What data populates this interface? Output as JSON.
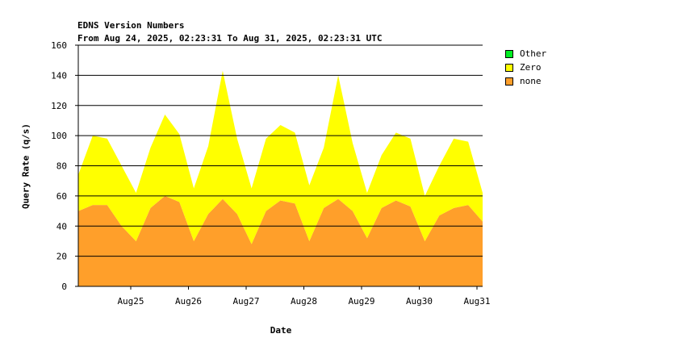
{
  "chart_data": {
    "type": "area",
    "title": "EDNS Version Numbers",
    "subtitle": "From Aug 24, 2025, 02:23:31 To Aug 31, 2025, 02:23:31 UTC",
    "xlabel": "Date",
    "ylabel": "Query Rate (q/s)",
    "ylim": [
      0,
      160
    ],
    "yticks": [
      0,
      20,
      40,
      60,
      80,
      100,
      120,
      140,
      160
    ],
    "xticks": [
      "Aug25",
      "Aug26",
      "Aug27",
      "Aug28",
      "Aug29",
      "Aug30",
      "Aug31"
    ],
    "stacked": true,
    "grid": true,
    "legend_position": "right",
    "legend": [
      "Other",
      "Zero",
      "none"
    ],
    "series_colors": {
      "Other": "#00ee22",
      "Zero": "#ffff00",
      "none": "#ff9f2a"
    },
    "x": [
      "Aug 24 02:00",
      "Aug 24 08:00",
      "Aug 24 14:00",
      "Aug 24 20:00",
      "Aug 25 02:00",
      "Aug 25 08:00",
      "Aug 25 14:00",
      "Aug 25 20:00",
      "Aug 26 02:00",
      "Aug 26 08:00",
      "Aug 26 14:00",
      "Aug 26 20:00",
      "Aug 27 02:00",
      "Aug 27 08:00",
      "Aug 27 14:00",
      "Aug 27 20:00",
      "Aug 28 02:00",
      "Aug 28 08:00",
      "Aug 28 14:00",
      "Aug 28 20:00",
      "Aug 29 02:00",
      "Aug 29 08:00",
      "Aug 29 14:00",
      "Aug 29 20:00",
      "Aug 30 02:00",
      "Aug 30 08:00",
      "Aug 30 14:00",
      "Aug 30 20:00",
      "Aug 31 02:00"
    ],
    "series": [
      {
        "name": "none",
        "values": [
          50,
          54,
          54,
          40,
          30,
          52,
          60,
          56,
          30,
          48,
          58,
          48,
          28,
          50,
          57,
          55,
          30,
          52,
          58,
          50,
          32,
          52,
          57,
          53,
          30,
          47,
          52,
          54,
          43
        ]
      },
      {
        "name": "Zero",
        "values": [
          24,
          46,
          44,
          40,
          32,
          40,
          54,
          45,
          35,
          45,
          85,
          50,
          37,
          48,
          50,
          47,
          37,
          40,
          82,
          45,
          30,
          35,
          45,
          45,
          30,
          33,
          46,
          42,
          19
        ]
      },
      {
        "name": "Other",
        "values": [
          0,
          0,
          0,
          0,
          0,
          0,
          0,
          0,
          0,
          0,
          0,
          0,
          0,
          0,
          0,
          0,
          0,
          0,
          0,
          0,
          0,
          0,
          0,
          0,
          0,
          0,
          0,
          0,
          0
        ]
      }
    ]
  }
}
